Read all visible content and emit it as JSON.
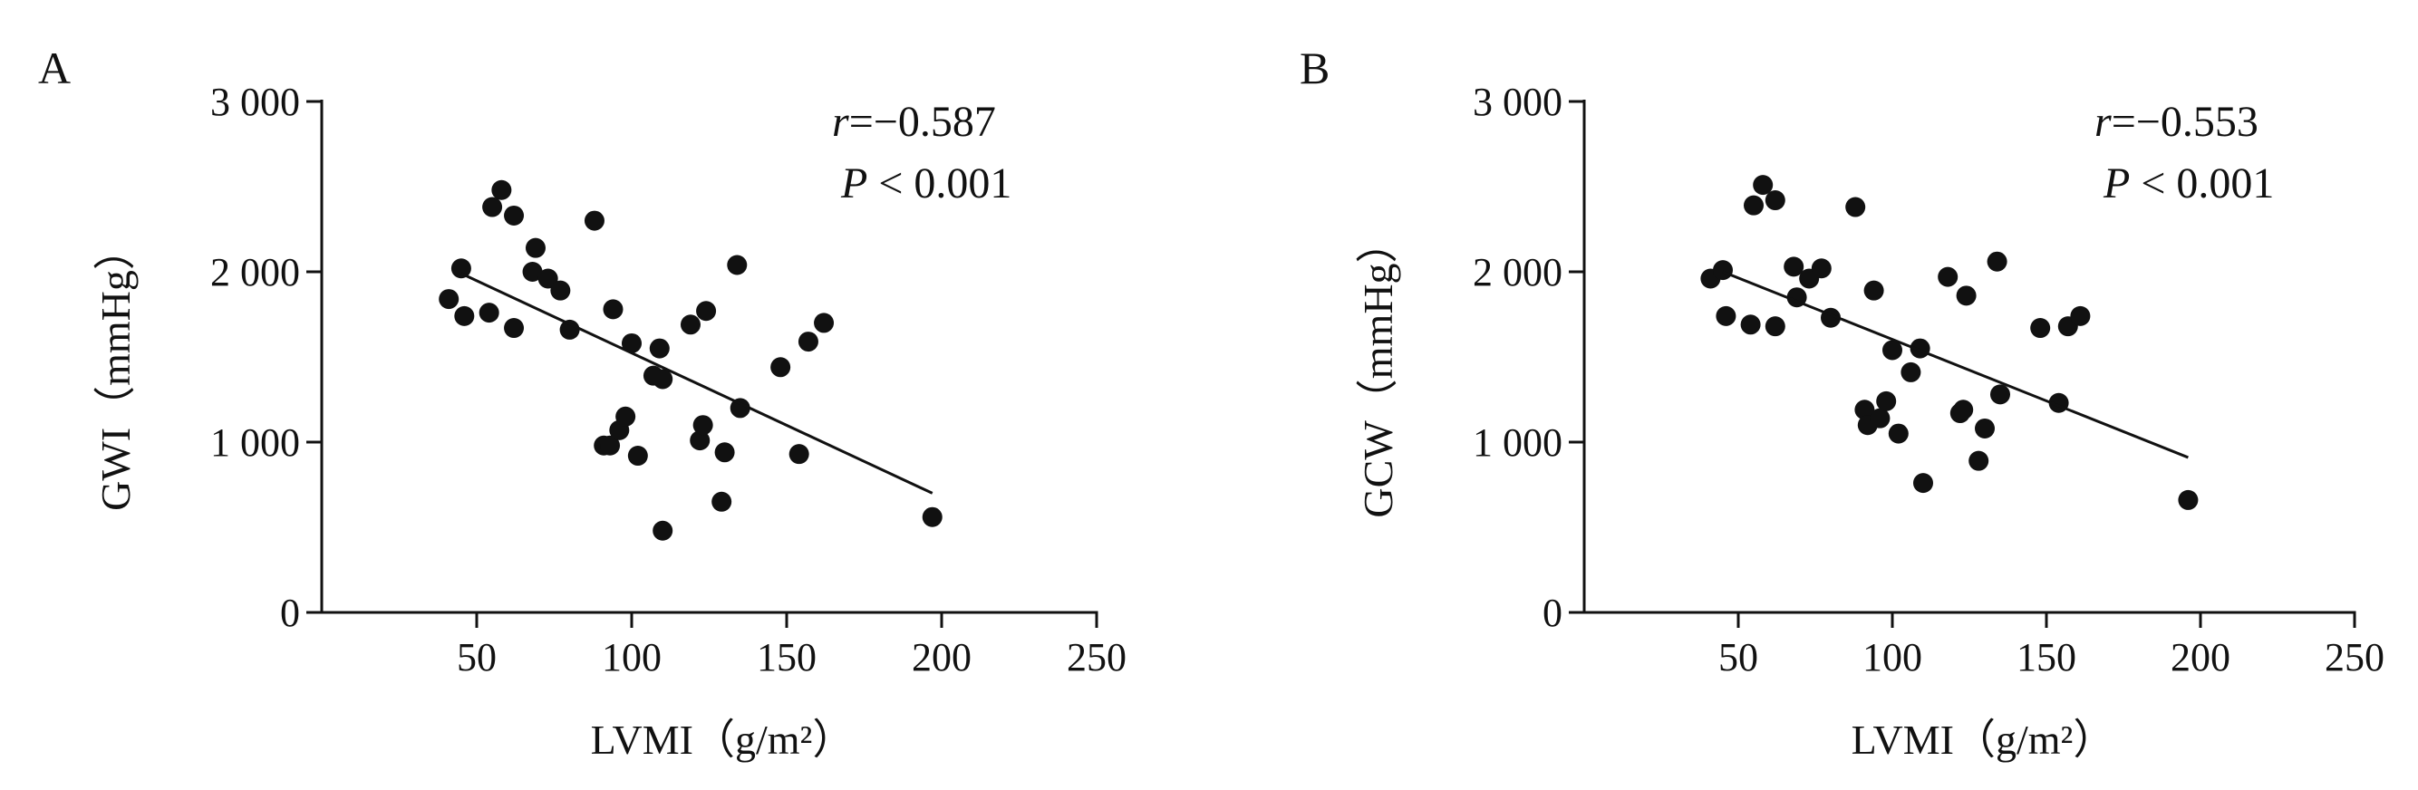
{
  "chart_data": [
    {
      "panel": "A",
      "type": "scatter",
      "xlabel": "LVMI（g/m²）",
      "ylabel": "GWI（mmHg）",
      "xlim": [
        0,
        250
      ],
      "ylim": [
        0,
        3000
      ],
      "xticks": [
        50,
        100,
        150,
        200,
        250
      ],
      "xtick_labels": [
        "50",
        "100",
        "150",
        "200",
        "250"
      ],
      "yticks": [
        0,
        1000,
        2000,
        3000
      ],
      "ytick_labels": [
        "0",
        "1 000",
        "2 000",
        "3 000"
      ],
      "stat_r_var": "r",
      "stat_r_value": "=−0.587",
      "stat_p_var": "P",
      "stat_p_value": " < 0.001",
      "fit_line": {
        "x": [
          45,
          197
        ],
        "y": [
          1990,
          700
        ]
      },
      "points": [
        {
          "x": 41,
          "y": 1840
        },
        {
          "x": 45,
          "y": 2020
        },
        {
          "x": 46,
          "y": 1740
        },
        {
          "x": 54,
          "y": 1760
        },
        {
          "x": 55,
          "y": 2380
        },
        {
          "x": 58,
          "y": 2480
        },
        {
          "x": 62,
          "y": 2330
        },
        {
          "x": 62,
          "y": 1670
        },
        {
          "x": 68,
          "y": 2000
        },
        {
          "x": 69,
          "y": 2140
        },
        {
          "x": 73,
          "y": 1960
        },
        {
          "x": 77,
          "y": 1890
        },
        {
          "x": 80,
          "y": 1660
        },
        {
          "x": 88,
          "y": 2300
        },
        {
          "x": 91,
          "y": 980
        },
        {
          "x": 93,
          "y": 980
        },
        {
          "x": 94,
          "y": 1780
        },
        {
          "x": 96,
          "y": 1070
        },
        {
          "x": 98,
          "y": 1150
        },
        {
          "x": 100,
          "y": 1580
        },
        {
          "x": 102,
          "y": 920
        },
        {
          "x": 107,
          "y": 1390
        },
        {
          "x": 109,
          "y": 1550
        },
        {
          "x": 110,
          "y": 1370
        },
        {
          "x": 110,
          "y": 480
        },
        {
          "x": 119,
          "y": 1690
        },
        {
          "x": 122,
          "y": 1010
        },
        {
          "x": 123,
          "y": 1100
        },
        {
          "x": 124,
          "y": 1770
        },
        {
          "x": 129,
          "y": 650
        },
        {
          "x": 130,
          "y": 940
        },
        {
          "x": 134,
          "y": 2040
        },
        {
          "x": 135,
          "y": 1200
        },
        {
          "x": 148,
          "y": 1440
        },
        {
          "x": 154,
          "y": 930
        },
        {
          "x": 157,
          "y": 1590
        },
        {
          "x": 162,
          "y": 1700
        },
        {
          "x": 197,
          "y": 560
        }
      ]
    },
    {
      "panel": "B",
      "type": "scatter",
      "xlabel": "LVMI（g/m²）",
      "ylabel": "GCW（mmHg）",
      "xlim": [
        0,
        250
      ],
      "ylim": [
        0,
        3000
      ],
      "xticks": [
        50,
        100,
        150,
        200,
        250
      ],
      "xtick_labels": [
        "50",
        "100",
        "150",
        "200",
        "250"
      ],
      "yticks": [
        0,
        1000,
        2000,
        3000
      ],
      "ytick_labels": [
        "0",
        "1 000",
        "2 000",
        "3 000"
      ],
      "stat_r_var": "r",
      "stat_r_value": "=−0.553",
      "stat_p_var": "P",
      "stat_p_value": " < 0.001",
      "fit_line": {
        "x": [
          45,
          196
        ],
        "y": [
          2000,
          910
        ]
      },
      "points": [
        {
          "x": 41,
          "y": 1960
        },
        {
          "x": 45,
          "y": 2010
        },
        {
          "x": 46,
          "y": 1740
        },
        {
          "x": 54,
          "y": 1690
        },
        {
          "x": 55,
          "y": 2390
        },
        {
          "x": 58,
          "y": 2510
        },
        {
          "x": 62,
          "y": 2420
        },
        {
          "x": 62,
          "y": 1680
        },
        {
          "x": 68,
          "y": 2030
        },
        {
          "x": 69,
          "y": 1850
        },
        {
          "x": 73,
          "y": 1960
        },
        {
          "x": 77,
          "y": 2020
        },
        {
          "x": 80,
          "y": 1730
        },
        {
          "x": 88,
          "y": 2380
        },
        {
          "x": 91,
          "y": 1190
        },
        {
          "x": 92,
          "y": 1100
        },
        {
          "x": 94,
          "y": 1890
        },
        {
          "x": 96,
          "y": 1140
        },
        {
          "x": 98,
          "y": 1240
        },
        {
          "x": 100,
          "y": 1540
        },
        {
          "x": 102,
          "y": 1050
        },
        {
          "x": 106,
          "y": 1410
        },
        {
          "x": 109,
          "y": 1550
        },
        {
          "x": 110,
          "y": 760
        },
        {
          "x": 118,
          "y": 1970
        },
        {
          "x": 122,
          "y": 1170
        },
        {
          "x": 123,
          "y": 1190
        },
        {
          "x": 124,
          "y": 1860
        },
        {
          "x": 128,
          "y": 890
        },
        {
          "x": 130,
          "y": 1080
        },
        {
          "x": 134,
          "y": 2060
        },
        {
          "x": 135,
          "y": 1280
        },
        {
          "x": 148,
          "y": 1670
        },
        {
          "x": 154,
          "y": 1230
        },
        {
          "x": 157,
          "y": 1680
        },
        {
          "x": 161,
          "y": 1740
        },
        {
          "x": 196,
          "y": 660
        }
      ]
    }
  ]
}
